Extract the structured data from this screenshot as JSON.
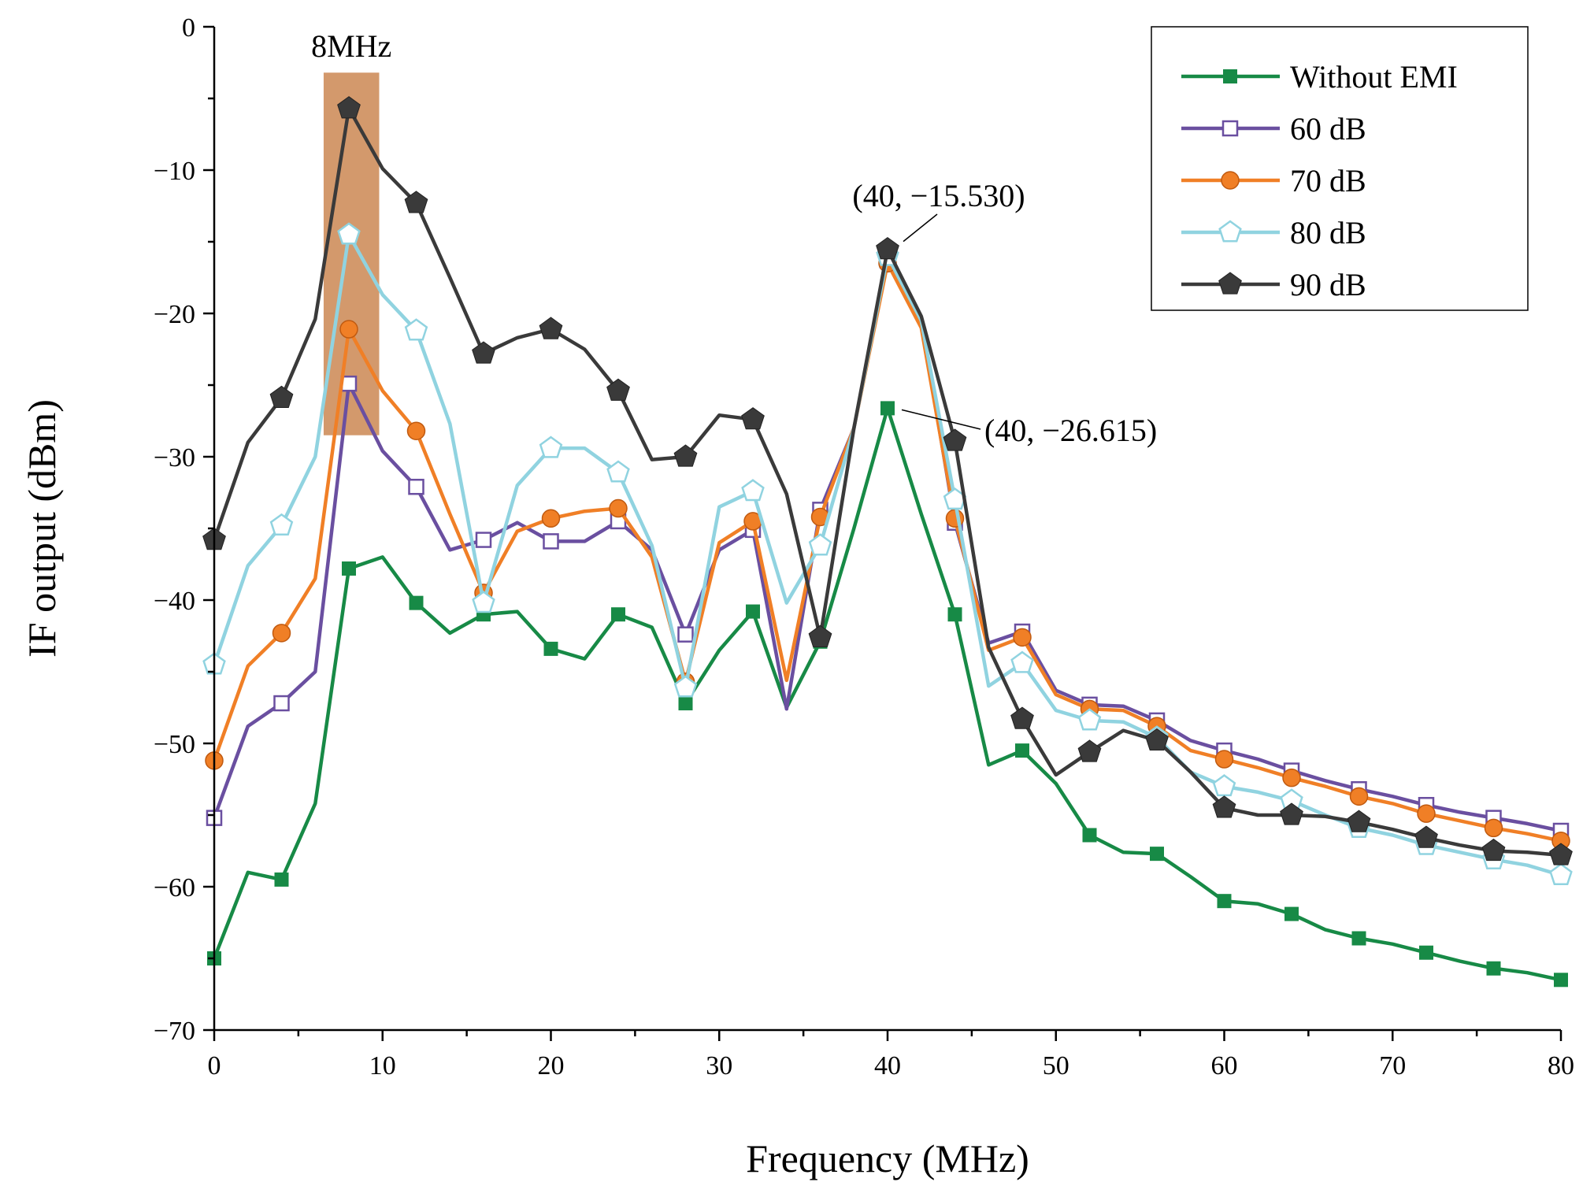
{
  "chart_data": {
    "type": "line",
    "xlabel": "Frequency (MHz)",
    "ylabel": "IF output (dBm)",
    "xlim": [
      0,
      80
    ],
    "ylim": [
      -70,
      0
    ],
    "xticks": [
      0,
      10,
      20,
      30,
      40,
      50,
      60,
      70,
      80
    ],
    "yticks": [
      0,
      -10,
      -20,
      -30,
      -40,
      -50,
      -60,
      -70
    ],
    "xtick_labels": [
      "0",
      "10",
      "20",
      "30",
      "40",
      "50",
      "60",
      "70",
      "80"
    ],
    "ytick_labels": [
      "0",
      "−10",
      "−20",
      "−30",
      "−40",
      "−50",
      "−60",
      "−70"
    ],
    "grid": false,
    "legend_position": "top-right",
    "highlight": {
      "label": "8MHz",
      "x_range": [
        6.5,
        9.8
      ],
      "y_range": [
        -28.5,
        -3.2
      ],
      "color": "#c4773b"
    },
    "annotations": [
      {
        "text": "(40, −15.530)",
        "point": [
          40,
          -15.53
        ]
      },
      {
        "text": "(40, −26.615)",
        "point": [
          40,
          -26.615
        ]
      }
    ],
    "x": [
      0,
      2,
      4,
      6,
      8,
      10,
      12,
      14,
      16,
      18,
      20,
      22,
      24,
      26,
      28,
      30,
      32,
      34,
      36,
      38,
      40,
      42,
      44,
      46,
      48,
      50,
      52,
      54,
      56,
      58,
      60,
      62,
      64,
      66,
      68,
      70,
      72,
      74,
      76,
      78,
      80
    ],
    "series": [
      {
        "name": "Without EMI",
        "color": "#178a46",
        "marker": "square-filled",
        "values": [
          -65.0,
          -59.0,
          -59.5,
          -54.2,
          -37.8,
          -37.0,
          -40.2,
          -42.3,
          -41.0,
          -40.8,
          -43.4,
          -44.1,
          -41.0,
          -41.9,
          -47.2,
          -43.5,
          -40.8,
          -47.5,
          -42.9,
          -35.0,
          -26.615,
          -34.0,
          -41.0,
          -51.5,
          -50.5,
          -52.8,
          -56.4,
          -57.6,
          -57.7,
          -59.3,
          -61.0,
          -61.2,
          -61.9,
          -63.0,
          -63.6,
          -64.0,
          -64.6,
          -65.2,
          -65.7,
          -66.0,
          -66.5
        ]
      },
      {
        "name": "60 dB",
        "color": "#6a4fa0",
        "marker": "square-open",
        "values": [
          -55.2,
          -48.8,
          -47.2,
          -45.0,
          -24.9,
          -29.6,
          -32.1,
          -36.5,
          -35.8,
          -34.6,
          -35.9,
          -35.9,
          -34.5,
          -36.5,
          -42.4,
          -36.5,
          -35.1,
          -47.6,
          -33.7,
          -28.0,
          -16.3,
          -20.5,
          -34.6,
          -43.0,
          -42.2,
          -46.3,
          -47.3,
          -47.4,
          -48.4,
          -49.8,
          -50.5,
          -51.1,
          -51.9,
          -52.6,
          -53.2,
          -53.7,
          -54.3,
          -54.8,
          -55.2,
          -55.6,
          -56.1
        ]
      },
      {
        "name": "70 dB",
        "color": "#f07f26",
        "marker": "circle-filled",
        "values": [
          -51.2,
          -44.6,
          -42.3,
          -38.5,
          -21.1,
          -25.4,
          -28.2,
          -34.0,
          -39.5,
          -35.2,
          -34.3,
          -33.8,
          -33.6,
          -37.0,
          -45.7,
          -36.0,
          -34.5,
          -45.6,
          -34.2,
          -28.0,
          -16.5,
          -21.0,
          -34.3,
          -43.5,
          -42.6,
          -46.6,
          -47.6,
          -47.7,
          -48.8,
          -50.5,
          -51.1,
          -51.7,
          -52.4,
          -53.0,
          -53.7,
          -54.2,
          -54.9,
          -55.4,
          -55.9,
          -56.3,
          -56.8
        ]
      },
      {
        "name": "80 dB",
        "color": "#90d3e0",
        "marker": "pentagon-open",
        "values": [
          -44.5,
          -37.6,
          -34.8,
          -30.0,
          -14.5,
          -18.7,
          -21.2,
          -27.7,
          -40.2,
          -32.0,
          -29.4,
          -29.4,
          -31.1,
          -36.2,
          -46.1,
          -33.5,
          -32.4,
          -40.2,
          -36.2,
          -28.0,
          -16.0,
          -20.5,
          -33.0,
          -46.0,
          -44.4,
          -47.7,
          -48.4,
          -48.5,
          -49.6,
          -52.0,
          -53.0,
          -53.4,
          -54.0,
          -55.0,
          -55.9,
          -56.4,
          -57.1,
          -57.6,
          -58.1,
          -58.5,
          -59.2
        ]
      },
      {
        "name": "90 dB",
        "color": "#3a3a3a",
        "marker": "pentagon-filled",
        "values": [
          -35.8,
          -29.0,
          -25.9,
          -20.4,
          -5.7,
          -9.9,
          -12.3,
          -17.5,
          -22.8,
          -21.7,
          -21.1,
          -22.5,
          -25.4,
          -30.2,
          -30.0,
          -27.1,
          -27.4,
          -32.6,
          -42.6,
          -28.0,
          -15.53,
          -20.2,
          -28.9,
          -43.3,
          -48.3,
          -52.2,
          -50.6,
          -49.1,
          -49.8,
          -52.0,
          -54.5,
          -55.0,
          -55.0,
          -55.1,
          -55.5,
          -56.0,
          -56.6,
          -57.1,
          -57.5,
          -57.6,
          -57.8
        ]
      }
    ]
  }
}
